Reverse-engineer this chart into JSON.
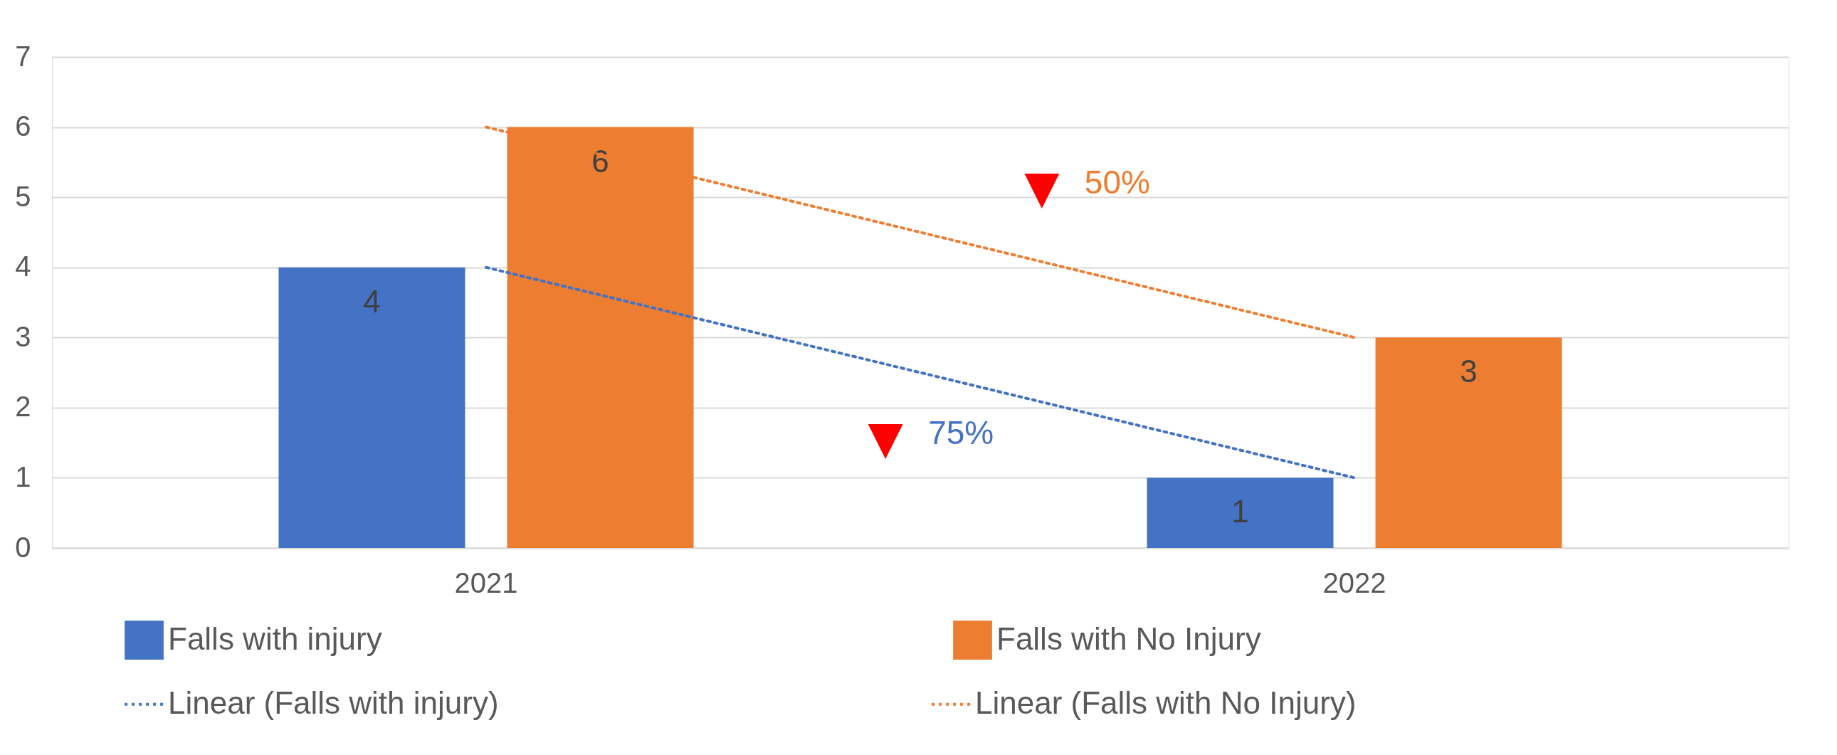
{
  "chart_data": {
    "type": "bar",
    "categories": [
      "2021",
      "2022"
    ],
    "series": [
      {
        "name": "Falls with injury",
        "color": "#4472c4",
        "values": [
          4,
          1
        ],
        "value_labels": [
          "4",
          "1"
        ]
      },
      {
        "name": "Falls with No Injury",
        "color": "#ed7d31",
        "values": [
          6,
          3
        ],
        "value_labels": [
          "6",
          "3"
        ]
      },
      {
        "name": "Linear (Falls with injury)",
        "type": "line",
        "color": "#4472c4",
        "values": [
          4,
          1
        ],
        "line_style": "dotted"
      },
      {
        "name": "Linear (Falls with No Injury)",
        "type": "line",
        "color": "#ed7d31",
        "values": [
          6,
          3
        ],
        "line_style": "dotted"
      }
    ],
    "ylim": [
      0,
      7
    ],
    "yticks": [
      0,
      1,
      2,
      3,
      4,
      5,
      6,
      7
    ],
    "grid": "y",
    "legend": "bottom",
    "annotations": [
      "▼ 50%",
      "▼ 75%"
    ]
  }
}
